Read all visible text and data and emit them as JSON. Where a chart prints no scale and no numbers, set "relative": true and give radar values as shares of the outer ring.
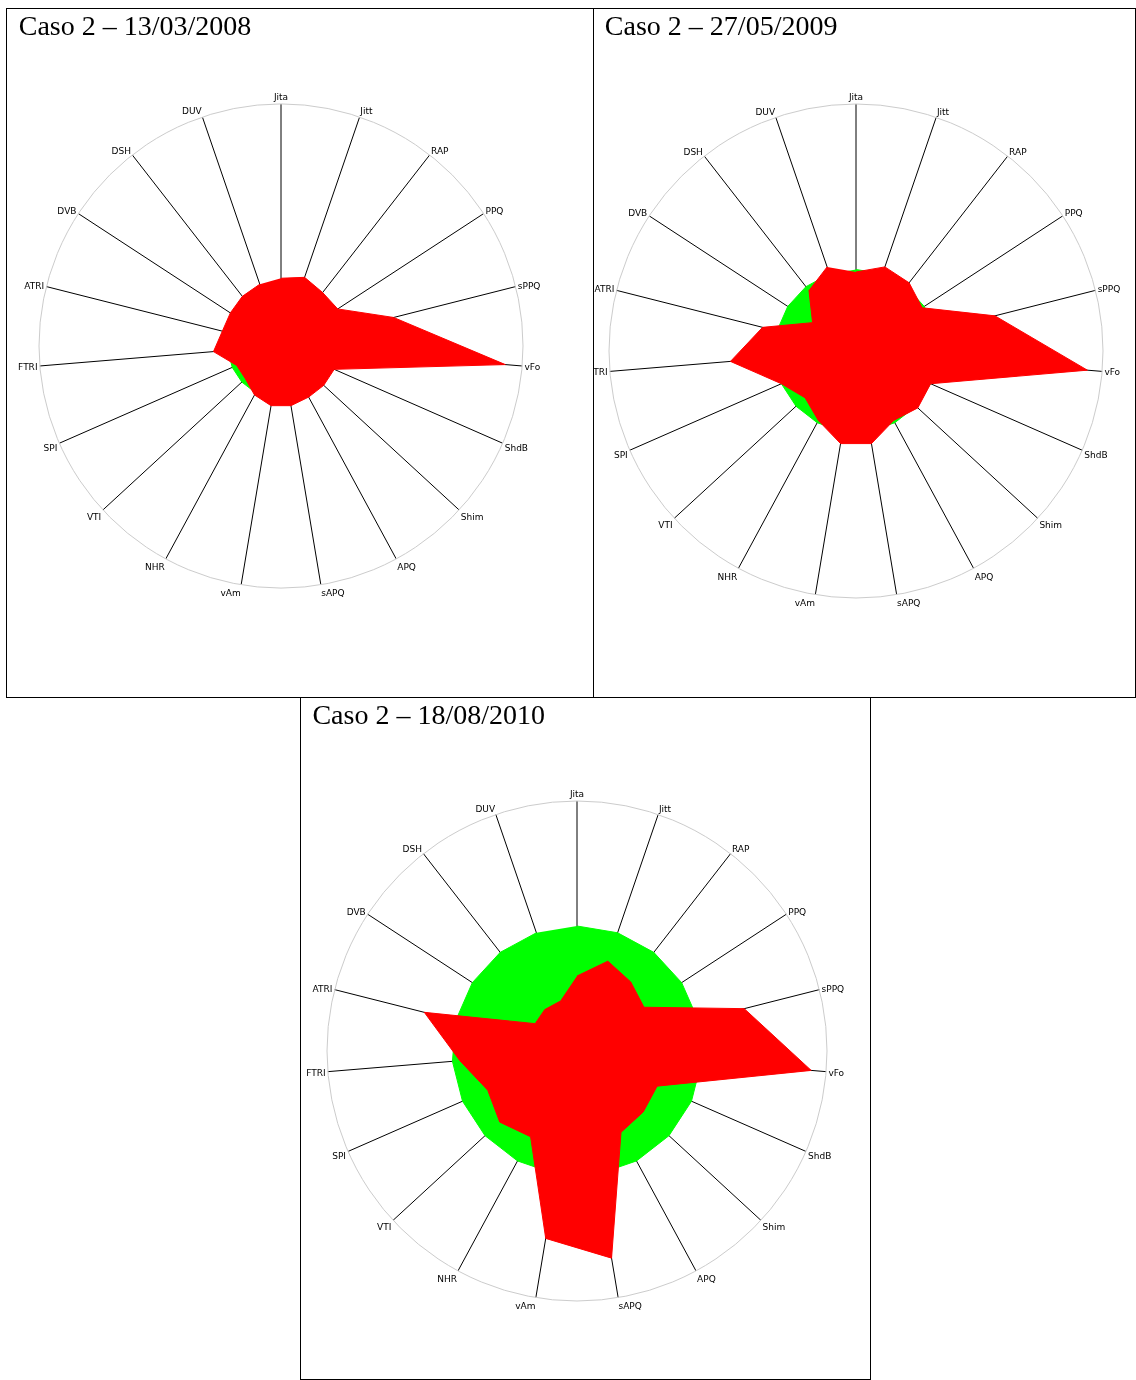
{
  "chart_data": [
    {
      "type": "radar",
      "title": "Caso 2 – 13/03/2008",
      "relative": true,
      "categories": [
        "Jita",
        "Jitt",
        "RAP",
        "PPQ",
        "sPPQ",
        "vFo",
        "ShdB",
        "Shim",
        "APQ",
        "sAPQ",
        "vAm",
        "NHR",
        "VTI",
        "SPI",
        "FTRI",
        "ATRI",
        "DVB",
        "DSH",
        "DUV"
      ],
      "series": [
        {
          "color": "#00ff00",
          "values": [
            0.22,
            0.22,
            0.22,
            0.22,
            0.22,
            0.22,
            0.22,
            0.22,
            0.22,
            0.22,
            0.22,
            0.22,
            0.22,
            0.22,
            0.22,
            0.22,
            0.22,
            0.22,
            0.22
          ]
        },
        {
          "color": "#ff0000",
          "values": [
            0.28,
            0.3,
            0.28,
            0.28,
            0.48,
            0.93,
            0.24,
            0.24,
            0.24,
            0.25,
            0.25,
            0.23,
            0.2,
            0.2,
            0.28,
            0.25,
            0.25,
            0.26,
            0.27
          ]
        }
      ]
    },
    {
      "type": "radar",
      "title": "Caso 2 – 27/05/2009",
      "relative": true,
      "categories": [
        "Jita",
        "Jitt",
        "RAP",
        "PPQ",
        "sPPQ",
        "vFo",
        "ShdB",
        "Shim",
        "APQ",
        "sAPQ",
        "vAm",
        "NHR",
        "VTI",
        "SPI",
        "TRI",
        "ATRI",
        "DVB",
        "DSH",
        "DUV"
      ],
      "series": [
        {
          "color": "#00ff00",
          "values": [
            0.33,
            0.33,
            0.33,
            0.33,
            0.33,
            0.33,
            0.33,
            0.33,
            0.33,
            0.33,
            0.33,
            0.33,
            0.33,
            0.33,
            0.33,
            0.33,
            0.33,
            0.33,
            0.33
          ]
        },
        {
          "color": "#ff0000",
          "values": [
            0.32,
            0.36,
            0.35,
            0.32,
            0.58,
            0.94,
            0.33,
            0.34,
            0.32,
            0.38,
            0.38,
            0.32,
            0.28,
            0.33,
            0.51,
            0.39,
            0.21,
            0.31,
            0.36
          ]
        }
      ]
    },
    {
      "type": "radar",
      "title": "Caso 2 – 18/08/2010",
      "relative": true,
      "categories": [
        "Jita",
        "Jitt",
        "RAP",
        "PPQ",
        "sPPQ",
        "vFo",
        "ShdB",
        "Shim",
        "APQ",
        "sAPQ",
        "vAm",
        "NHR",
        "VTI",
        "SPI",
        "FTRI",
        "ATRI",
        "DVB",
        "DSH",
        "DUV"
      ],
      "series": [
        {
          "color": "#00ff00",
          "values": [
            0.5,
            0.5,
            0.5,
            0.5,
            0.5,
            0.5,
            0.5,
            0.5,
            0.5,
            0.5,
            0.5,
            0.5,
            0.5,
            0.5,
            0.5,
            0.5,
            0.5,
            0.5,
            0.5
          ]
        },
        {
          "color": "#ff0000",
          "values": [
            0.3,
            0.38,
            0.35,
            0.32,
            0.69,
            0.94,
            0.35,
            0.36,
            0.37,
            0.84,
            0.76,
            0.39,
            0.42,
            0.39,
            0.47,
            0.63,
            0.2,
            0.21,
            0.21
          ]
        }
      ]
    }
  ]
}
